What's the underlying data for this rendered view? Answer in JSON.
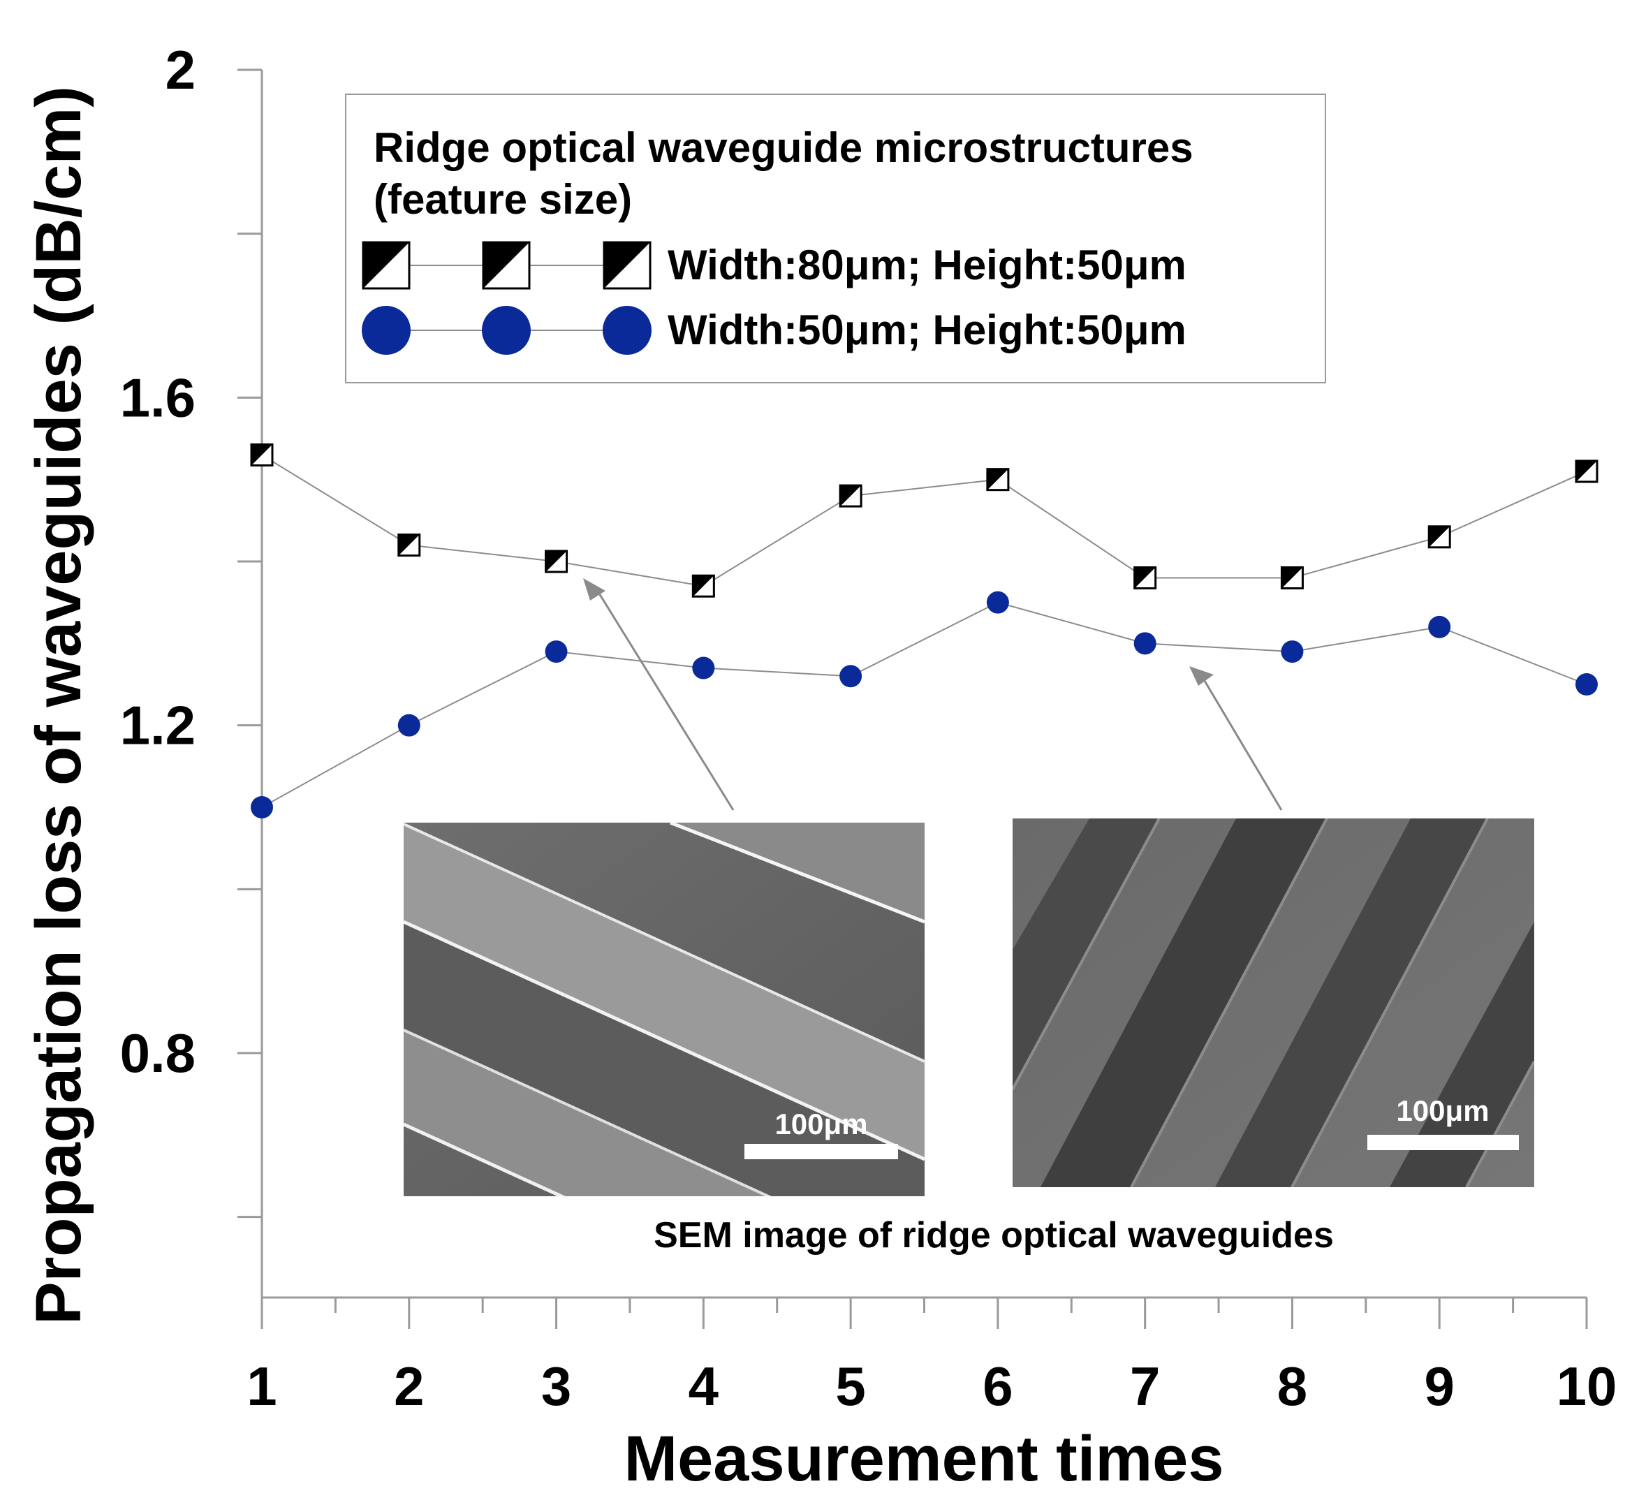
{
  "chart_data": {
    "type": "line",
    "title": "",
    "xlabel": "Measurement times",
    "ylabel": "Propagation loss of waveguides (dB/cm)",
    "x": [
      1,
      2,
      3,
      4,
      5,
      6,
      7,
      8,
      9,
      10
    ],
    "xlim": [
      1,
      10
    ],
    "ylim": [
      0.55,
      2.0
    ],
    "y_ticks": [
      0.8,
      1.2,
      1.6,
      2.0
    ],
    "y_tick_labels": [
      "0.8",
      "1.2",
      "1.6",
      "2"
    ],
    "x_tick_labels": [
      "1",
      "2",
      "3",
      "4",
      "5",
      "6",
      "7",
      "8",
      "9",
      "10"
    ],
    "grid": false,
    "legend": {
      "title_line1": "Ridge optical waveguide microstructures",
      "title_line2": "(feature size)",
      "placement": "top-center"
    },
    "series": [
      {
        "name": "Width:80μm; Height:50μm",
        "marker": "half-filled-square",
        "color": "#000000",
        "values": [
          1.53,
          1.42,
          1.4,
          1.37,
          1.48,
          1.5,
          1.38,
          1.38,
          1.43,
          1.51
        ]
      },
      {
        "name": "Width:50μm; Height:50μm",
        "marker": "circle",
        "color": "#0a2a9a",
        "values": [
          1.1,
          1.2,
          1.29,
          1.27,
          1.26,
          1.35,
          1.3,
          1.29,
          1.32,
          1.25
        ]
      }
    ],
    "annotations": {
      "inset_caption": "SEM image of ridge optical waveguides",
      "scale_bar_left": "100μm",
      "scale_bar_right": "100μm"
    }
  },
  "colors": {
    "axis": "#9a9a9a",
    "connector": "#8c8c8c",
    "arrow": "#8a8a8a",
    "circle_marker": "#0a2a9a"
  }
}
